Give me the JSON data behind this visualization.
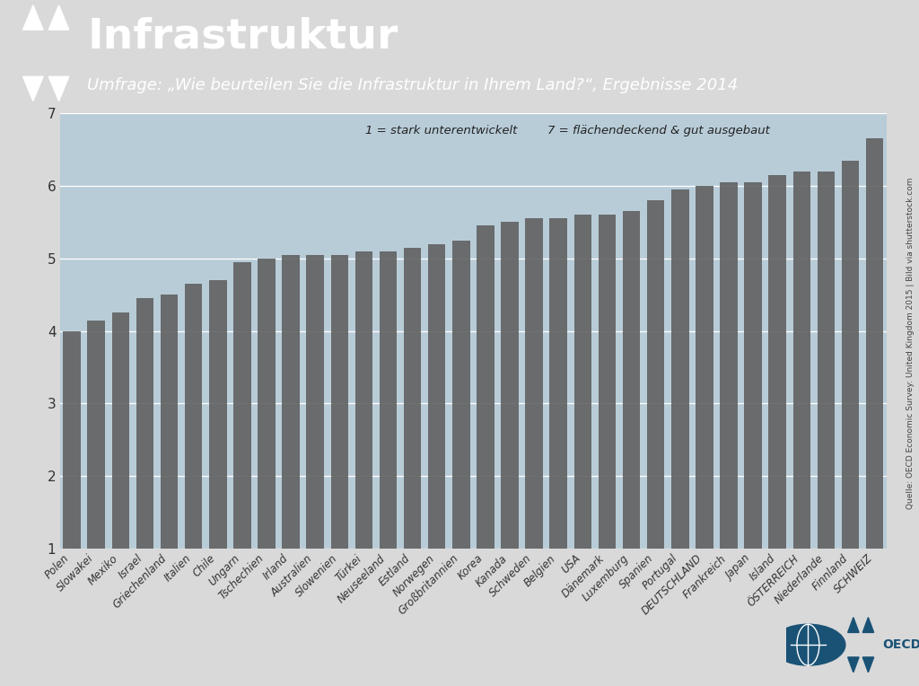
{
  "title": "Infrastruktur",
  "subtitle": "Umfrage: „Wie beurteilen Sie die Infrastruktur in Ihrem Land?“, Ergebnisse 2014",
  "annotation1": "1 = stark unterentwickelt",
  "annotation2": "7 = flächendeckend & gut ausgebaut",
  "source": "Quelle: OECD Economic Survey: United Kingdom 2015 | Bild via shutterstock.com",
  "categories": [
    "Polen",
    "Slowakei",
    "Mexiko",
    "Israel",
    "Griechenland",
    "Italien",
    "Chile",
    "Ungarn",
    "Tschechien",
    "Irland",
    "Australien",
    "Slowenien",
    "Türkei",
    "Neuseeland",
    "Estland",
    "Norwegen",
    "Großbritannien",
    "Korea",
    "Kanada",
    "Schweden",
    "Belgien",
    "USA",
    "Dänemark",
    "Luxemburg",
    "Spanien",
    "Portugal",
    "DEUTSCHLAND",
    "Frankreich",
    "Japan",
    "Island",
    "ÖSTERREICH",
    "Niederlande",
    "Finnland",
    "SCHWEIZ"
  ],
  "values": [
    4.0,
    4.15,
    4.25,
    4.45,
    4.5,
    4.65,
    4.7,
    4.95,
    5.0,
    5.05,
    5.05,
    5.05,
    5.1,
    5.1,
    5.15,
    5.2,
    5.25,
    5.45,
    5.5,
    5.55,
    5.55,
    5.6,
    5.6,
    5.65,
    5.8,
    5.95,
    6.0,
    6.05,
    6.05,
    6.15,
    6.2,
    6.2,
    6.35,
    6.65
  ],
  "bar_color": "#616161",
  "header_bg_color": "#6b6b6b",
  "header_text_color": "#ffffff",
  "plot_bg_color": "#b8ccd8",
  "fig_bg_color": "#d9d9d9",
  "title_fontsize": 34,
  "subtitle_fontsize": 13,
  "ylim": [
    1,
    7
  ],
  "yticks": [
    1,
    2,
    3,
    4,
    5,
    6,
    7
  ]
}
